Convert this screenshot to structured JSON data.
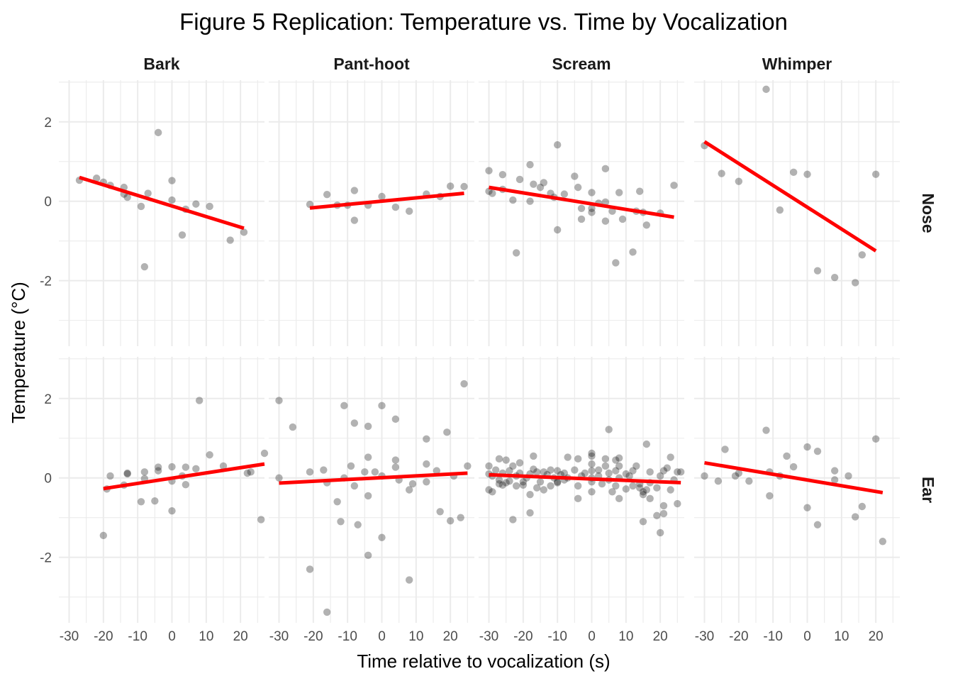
{
  "chart_data": {
    "type": "scatter",
    "title": "Figure 5 Replication: Temperature vs. Time by Vocalization",
    "xlabel": "Time relative to vocalization (s)",
    "ylabel": "Temperature (°C)",
    "xlim": [
      -33,
      27
    ],
    "ylim": [
      -3.65,
      3.05
    ],
    "x_ticks": [
      -30,
      -20,
      -10,
      0,
      10,
      20
    ],
    "x_tick_labels": [
      "-30",
      "-20",
      "-10",
      "0",
      "10",
      "20"
    ],
    "y_ticks": [
      2,
      0,
      -2
    ],
    "y_tick_labels": [
      "2",
      "0",
      "-2"
    ],
    "grid": true,
    "facet_columns": [
      "Bark",
      "Pant-hoot",
      "Scream",
      "Whimper"
    ],
    "facet_rows": [
      "Nose",
      "Ear"
    ],
    "panels": [
      {
        "column": "Bark",
        "row": "Nose",
        "fit": {
          "x": [
            -27,
            21
          ],
          "y": [
            0.6,
            -0.68
          ]
        },
        "points": [
          [
            -27,
            0.53
          ],
          [
            -22,
            0.58
          ],
          [
            -20,
            0.48
          ],
          [
            -18,
            0.4
          ],
          [
            -14,
            0.35
          ],
          [
            -14,
            0.18
          ],
          [
            -13,
            0.1
          ],
          [
            -9,
            -0.13
          ],
          [
            -8,
            -1.65
          ],
          [
            -7,
            0.2
          ],
          [
            -4,
            1.73
          ],
          [
            0,
            0.52
          ],
          [
            0,
            0.03
          ],
          [
            3,
            -0.85
          ],
          [
            4,
            -0.2
          ],
          [
            7,
            -0.07
          ],
          [
            11,
            -0.13
          ],
          [
            17,
            -0.98
          ],
          [
            21,
            -0.78
          ]
        ]
      },
      {
        "column": "Pant-hoot",
        "row": "Nose",
        "fit": {
          "x": [
            -21,
            24
          ],
          "y": [
            -0.17,
            0.2
          ]
        },
        "points": [
          [
            -21,
            -0.08
          ],
          [
            -16,
            0.17
          ],
          [
            -13,
            -0.1
          ],
          [
            -10,
            -0.1
          ],
          [
            -8,
            -0.48
          ],
          [
            -8,
            0.27
          ],
          [
            -4,
            -0.1
          ],
          [
            0,
            0.12
          ],
          [
            4,
            -0.15
          ],
          [
            8,
            -0.25
          ],
          [
            13,
            0.18
          ],
          [
            17,
            0.12
          ],
          [
            20,
            0.38
          ],
          [
            24,
            0.37
          ]
        ]
      },
      {
        "column": "Scream",
        "row": "Nose",
        "fit": {
          "x": [
            -30,
            24
          ],
          "y": [
            0.35,
            -0.4
          ]
        },
        "points": [
          [
            -30,
            0.77
          ],
          [
            -30,
            0.25
          ],
          [
            -29,
            0.2
          ],
          [
            -26,
            0.67
          ],
          [
            -26,
            0.3
          ],
          [
            -23,
            0.03
          ],
          [
            -22,
            -1.3
          ],
          [
            -21,
            0.55
          ],
          [
            -18,
            0.92
          ],
          [
            -18,
            0.0
          ],
          [
            -17,
            0.43
          ],
          [
            -15,
            0.35
          ],
          [
            -14,
            0.47
          ],
          [
            -12,
            0.2
          ],
          [
            -11,
            0.1
          ],
          [
            -10,
            1.42
          ],
          [
            -10,
            -0.72
          ],
          [
            -8,
            0.18
          ],
          [
            -5,
            0.63
          ],
          [
            -4,
            0.35
          ],
          [
            -3,
            -0.45
          ],
          [
            -3,
            -0.18
          ],
          [
            0,
            0.22
          ],
          [
            0,
            -0.18
          ],
          [
            0,
            -0.28
          ],
          [
            2,
            -0.05
          ],
          [
            4,
            0.82
          ],
          [
            4,
            -0.5
          ],
          [
            4,
            -0.02
          ],
          [
            6,
            -0.25
          ],
          [
            7,
            -1.55
          ],
          [
            8,
            0.22
          ],
          [
            9,
            -0.45
          ],
          [
            12,
            -1.28
          ],
          [
            13,
            -0.25
          ],
          [
            14,
            0.25
          ],
          [
            15,
            -0.28
          ],
          [
            16,
            -0.6
          ],
          [
            20,
            -0.3
          ],
          [
            24,
            0.4
          ]
        ]
      },
      {
        "column": "Whimper",
        "row": "Nose",
        "fit": {
          "x": [
            -30,
            20
          ],
          "y": [
            1.5,
            -1.25
          ]
        },
        "points": [
          [
            -30,
            1.4
          ],
          [
            -25,
            0.7
          ],
          [
            -20,
            0.5
          ],
          [
            -12,
            2.82
          ],
          [
            -8,
            -0.22
          ],
          [
            -4,
            0.73
          ],
          [
            0,
            0.68
          ],
          [
            3,
            -1.75
          ],
          [
            8,
            -1.92
          ],
          [
            14,
            -2.05
          ],
          [
            16,
            -1.35
          ],
          [
            20,
            0.68
          ]
        ]
      },
      {
        "column": "Bark",
        "row": "Ear",
        "fit": {
          "x": [
            -20,
            27
          ],
          "y": [
            -0.27,
            0.35
          ]
        },
        "points": [
          [
            -20,
            -1.45
          ],
          [
            -19,
            -0.28
          ],
          [
            -18,
            0.05
          ],
          [
            -14,
            -0.18
          ],
          [
            -13,
            0.12
          ],
          [
            -13,
            0.1
          ],
          [
            -9,
            -0.6
          ],
          [
            -8,
            0.15
          ],
          [
            -8,
            -0.02
          ],
          [
            -5,
            -0.58
          ],
          [
            -4,
            0.18
          ],
          [
            -4,
            0.27
          ],
          [
            0,
            0.28
          ],
          [
            0,
            -0.08
          ],
          [
            0,
            -0.83
          ],
          [
            3,
            0.05
          ],
          [
            4,
            -0.17
          ],
          [
            4,
            0.27
          ],
          [
            7,
            0.23
          ],
          [
            8,
            1.95
          ],
          [
            11,
            0.58
          ],
          [
            15,
            0.3
          ],
          [
            22,
            0.12
          ],
          [
            23,
            0.15
          ],
          [
            26,
            -1.05
          ],
          [
            27,
            0.62
          ]
        ]
      },
      {
        "column": "Pant-hoot",
        "row": "Ear",
        "fit": {
          "x": [
            -30,
            25
          ],
          "y": [
            -0.13,
            0.12
          ]
        },
        "points": [
          [
            -30,
            1.95
          ],
          [
            -30,
            0.0
          ],
          [
            -26,
            1.28
          ],
          [
            -21,
            0.15
          ],
          [
            -21,
            -2.3
          ],
          [
            -17,
            0.2
          ],
          [
            -16,
            -0.12
          ],
          [
            -16,
            -3.38
          ],
          [
            -13,
            -0.6
          ],
          [
            -12,
            -1.1
          ],
          [
            -11,
            0.0
          ],
          [
            -11,
            1.82
          ],
          [
            -9,
            0.3
          ],
          [
            -8,
            -0.2
          ],
          [
            -8,
            1.38
          ],
          [
            -7,
            -1.18
          ],
          [
            -5,
            0.15
          ],
          [
            -4,
            1.3
          ],
          [
            -4,
            -0.45
          ],
          [
            -4,
            0.52
          ],
          [
            -4,
            -1.95
          ],
          [
            -2,
            0.15
          ],
          [
            0,
            0.05
          ],
          [
            0,
            1.82
          ],
          [
            0,
            -1.5
          ],
          [
            4,
            1.48
          ],
          [
            4,
            0.45
          ],
          [
            4,
            0.27
          ],
          [
            5,
            -0.05
          ],
          [
            8,
            -2.57
          ],
          [
            8,
            -0.3
          ],
          [
            9,
            -0.15
          ],
          [
            13,
            0.98
          ],
          [
            13,
            0.35
          ],
          [
            13,
            -0.1
          ],
          [
            16,
            0.18
          ],
          [
            17,
            -0.85
          ],
          [
            19,
            1.15
          ],
          [
            20,
            -1.08
          ],
          [
            21,
            0.05
          ],
          [
            23,
            -1.0
          ],
          [
            24,
            2.37
          ],
          [
            25,
            0.3
          ]
        ]
      },
      {
        "column": "Scream",
        "row": "Ear",
        "fit": {
          "x": [
            -30,
            26
          ],
          "y": [
            0.08,
            -0.12
          ]
        },
        "points": [
          [
            -30,
            0.3
          ],
          [
            -30,
            0.1
          ],
          [
            -30,
            -0.3
          ],
          [
            -29,
            0.05
          ],
          [
            -29,
            -0.35
          ],
          [
            -28,
            0.2
          ],
          [
            -27,
            0.48
          ],
          [
            -27,
            -0.05
          ],
          [
            -27,
            -0.15
          ],
          [
            -26,
            0.12
          ],
          [
            -26,
            -0.18
          ],
          [
            -25,
            0.45
          ],
          [
            -25,
            -0.12
          ],
          [
            -24,
            0.18
          ],
          [
            -24,
            -0.08
          ],
          [
            -23,
            0.3
          ],
          [
            -23,
            -1.05
          ],
          [
            -22,
            0.05
          ],
          [
            -22,
            -0.2
          ],
          [
            -21,
            0.38
          ],
          [
            -21,
            0.12
          ],
          [
            -20,
            -0.18
          ],
          [
            -20,
            -0.1
          ],
          [
            -19,
            0.0
          ],
          [
            -18,
            -0.88
          ],
          [
            -18,
            0.1
          ],
          [
            -18,
            -0.42
          ],
          [
            -17,
            0.55
          ],
          [
            -17,
            0.22
          ],
          [
            -16,
            0.15
          ],
          [
            -16,
            -0.25
          ],
          [
            -15,
            -0.1
          ],
          [
            -14,
            0.15
          ],
          [
            -14,
            -0.3
          ],
          [
            -13,
            0.08
          ],
          [
            -12,
            -0.2
          ],
          [
            -12,
            0.2
          ],
          [
            -11,
            0.0
          ],
          [
            -10,
            0.18
          ],
          [
            -10,
            -0.1
          ],
          [
            -10,
            -0.12
          ],
          [
            -9,
            0.08
          ],
          [
            -8,
            0.12
          ],
          [
            -8,
            -0.05
          ],
          [
            -7,
            0.52
          ],
          [
            -7,
            0.0
          ],
          [
            -5,
            0.2
          ],
          [
            -4,
            0.48
          ],
          [
            -4,
            -0.52
          ],
          [
            -4,
            -0.2
          ],
          [
            -3,
            0.05
          ],
          [
            -2,
            0.12
          ],
          [
            0,
            0.62
          ],
          [
            0,
            0.55
          ],
          [
            0,
            0.35
          ],
          [
            0,
            0.18
          ],
          [
            0,
            0.0
          ],
          [
            0,
            -0.1
          ],
          [
            0,
            -0.35
          ],
          [
            2,
            0.2
          ],
          [
            2,
            0.05
          ],
          [
            3,
            -0.15
          ],
          [
            4,
            0.48
          ],
          [
            4,
            0.3
          ],
          [
            5,
            1.22
          ],
          [
            5,
            0.12
          ],
          [
            5,
            -0.05
          ],
          [
            6,
            -0.35
          ],
          [
            7,
            0.45
          ],
          [
            7,
            0.18
          ],
          [
            7,
            -0.2
          ],
          [
            8,
            0.5
          ],
          [
            8,
            0.3
          ],
          [
            8,
            -0.52
          ],
          [
            8,
            0.0
          ],
          [
            10,
            -0.28
          ],
          [
            10,
            0.1
          ],
          [
            11,
            0.05
          ],
          [
            12,
            0.18
          ],
          [
            12,
            -0.2
          ],
          [
            13,
            0.3
          ],
          [
            14,
            -0.15
          ],
          [
            14,
            -0.25
          ],
          [
            15,
            -0.35
          ],
          [
            15,
            -1.1
          ],
          [
            15,
            -0.42
          ],
          [
            16,
            0.85
          ],
          [
            16,
            -0.3
          ],
          [
            17,
            0.15
          ],
          [
            17,
            -0.12
          ],
          [
            17,
            -0.52
          ],
          [
            19,
            -0.25
          ],
          [
            19,
            -0.95
          ],
          [
            20,
            -1.38
          ],
          [
            20,
            0.05
          ],
          [
            21,
            0.18
          ],
          [
            21,
            -0.9
          ],
          [
            21,
            -0.7
          ],
          [
            22,
            0.25
          ],
          [
            23,
            0.52
          ],
          [
            23,
            -0.3
          ],
          [
            24,
            -0.05
          ],
          [
            25,
            0.15
          ],
          [
            25,
            -0.65
          ],
          [
            26,
            0.15
          ]
        ]
      },
      {
        "column": "Whimper",
        "row": "Ear",
        "fit": {
          "x": [
            -30,
            22
          ],
          "y": [
            0.38,
            -0.37
          ]
        },
        "points": [
          [
            -30,
            0.05
          ],
          [
            -26,
            -0.08
          ],
          [
            -24,
            0.72
          ],
          [
            -21,
            0.05
          ],
          [
            -20,
            0.12
          ],
          [
            -17,
            -0.08
          ],
          [
            -12,
            1.2
          ],
          [
            -11,
            -0.45
          ],
          [
            -11,
            0.15
          ],
          [
            -8,
            0.05
          ],
          [
            -6,
            0.55
          ],
          [
            -4,
            0.28
          ],
          [
            0,
            0.78
          ],
          [
            0,
            -0.75
          ],
          [
            3,
            -1.18
          ],
          [
            3,
            0.67
          ],
          [
            8,
            0.18
          ],
          [
            8,
            -0.05
          ],
          [
            12,
            0.05
          ],
          [
            14,
            -0.98
          ],
          [
            16,
            -0.72
          ],
          [
            20,
            0.98
          ],
          [
            22,
            -1.6
          ]
        ]
      }
    ]
  }
}
